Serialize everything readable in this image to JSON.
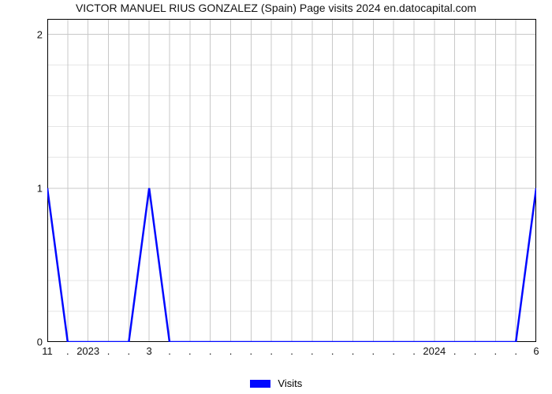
{
  "chart": {
    "type": "line",
    "title": "VICTOR MANUEL RIUS GONZALEZ (Spain) Page visits 2024 en.datocapital.com",
    "title_fontsize": 14,
    "title_color": "#111111",
    "background_color": "#ffffff",
    "plot_border_color": "#000000",
    "grid_major_color": "#c8c8c8",
    "grid_minor_color": "#e6e6e6",
    "xlim": [
      0,
      24
    ],
    "ylim": [
      0,
      2.1
    ],
    "y_tick_values": [
      0,
      1,
      2
    ],
    "y_tick_labels": [
      "0",
      "1",
      "2"
    ],
    "y_minor_step": 0.2,
    "y_tick_fontsize": 13,
    "x_tick_values": [
      0,
      1,
      2,
      3,
      4,
      5,
      6,
      7,
      8,
      9,
      10,
      11,
      12,
      13,
      14,
      15,
      16,
      17,
      18,
      19,
      20,
      21,
      22,
      23,
      24
    ],
    "x_tick_labels": [
      "11",
      ".",
      "2023",
      ".",
      ".",
      "3",
      ".",
      ".",
      ".",
      ".",
      ".",
      ".",
      ".",
      ".",
      ".",
      ".",
      ".",
      ".",
      ".",
      "2024",
      ".",
      ".",
      ".",
      ".",
      "6"
    ],
    "x_tick_fontsize": 13,
    "series": {
      "name": "Visits",
      "color": "#0008ff",
      "line_width": 2.5,
      "x": [
        0,
        1,
        2,
        3,
        4,
        5,
        6,
        7,
        8,
        9,
        10,
        11,
        12,
        13,
        14,
        15,
        16,
        17,
        18,
        19,
        20,
        21,
        22,
        23,
        24
      ],
      "y": [
        1,
        0,
        0,
        0,
        0,
        1,
        0,
        0,
        0,
        0,
        0,
        0,
        0,
        0,
        0,
        0,
        0,
        0,
        0,
        0,
        0,
        0,
        0,
        0,
        1
      ]
    },
    "legend": {
      "position": "bottom-center",
      "swatch_color": "#0008ff",
      "label": "Visits",
      "fontsize": 13
    }
  }
}
